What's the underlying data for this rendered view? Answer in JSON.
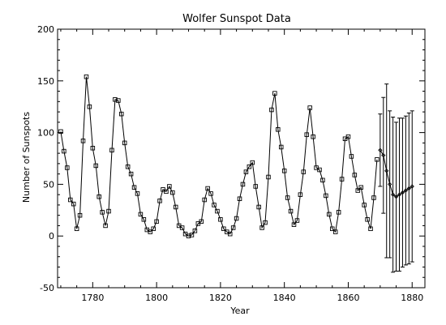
{
  "chart_data": {
    "type": "line",
    "title": "Wolfer Sunspot Data",
    "xlabel": "Year",
    "ylabel": "Number of Sunspots",
    "xlim": [
      1769,
      1884
    ],
    "ylim": [
      -50,
      200
    ],
    "x_ticks": [
      1780,
      1800,
      1820,
      1840,
      1860,
      1880
    ],
    "y_ticks": [
      -50,
      0,
      50,
      100,
      150,
      200
    ],
    "grid": false,
    "series": [
      {
        "x": [
          1770,
          1771,
          1772,
          1773,
          1774,
          1775,
          1776,
          1777,
          1778,
          1779,
          1780,
          1781,
          1782,
          1783,
          1784,
          1785,
          1786,
          1787,
          1788,
          1789,
          1790,
          1791,
          1792,
          1793,
          1794,
          1795,
          1796,
          1797,
          1798,
          1799,
          1800,
          1801,
          1802,
          1803,
          1804,
          1805,
          1806,
          1807,
          1808,
          1809,
          1810,
          1811,
          1812,
          1813,
          1814,
          1815,
          1816,
          1817,
          1818,
          1819,
          1820,
          1821,
          1822,
          1823,
          1824,
          1825,
          1826,
          1827,
          1828,
          1829,
          1830,
          1831,
          1832,
          1833,
          1834,
          1835,
          1836,
          1837,
          1838,
          1839,
          1840,
          1841,
          1842,
          1843,
          1844,
          1845,
          1846,
          1847,
          1848,
          1849,
          1850,
          1851,
          1852,
          1853,
          1854,
          1855,
          1856,
          1857,
          1858,
          1859,
          1860,
          1861,
          1862,
          1863,
          1864,
          1865,
          1866,
          1867,
          1868,
          1869
        ],
        "values": [
          101,
          82,
          66,
          35,
          31,
          7,
          20,
          92,
          154,
          125,
          85,
          68,
          38,
          23,
          10,
          24,
          83,
          132,
          131,
          118,
          90,
          67,
          60,
          47,
          41,
          21,
          16,
          6,
          4,
          7,
          14,
          34,
          45,
          43,
          48,
          42,
          28,
          10,
          8,
          2,
          0,
          1,
          5,
          12,
          14,
          35,
          46,
          41,
          30,
          24,
          16,
          7,
          4,
          2,
          8,
          17,
          36,
          50,
          62,
          67,
          71,
          48,
          28,
          8,
          13,
          57,
          122,
          138,
          103,
          86,
          63,
          37,
          24,
          11,
          15,
          40,
          62,
          98,
          124,
          96,
          66,
          64,
          54,
          39,
          21,
          7,
          4,
          23,
          55,
          94,
          96,
          77,
          59,
          44,
          47,
          30,
          16,
          7,
          37,
          74
        ]
      },
      {
        "x": [
          1870,
          1871,
          1872,
          1873,
          1874,
          1875,
          1876,
          1877,
          1878,
          1879,
          1880
        ],
        "values": [
          83,
          78,
          63,
          50,
          40,
          38,
          40,
          42,
          44,
          46,
          48
        ],
        "errors": [
          35,
          56,
          84,
          71,
          75,
          72,
          74,
          72,
          72,
          73,
          73
        ]
      }
    ]
  }
}
